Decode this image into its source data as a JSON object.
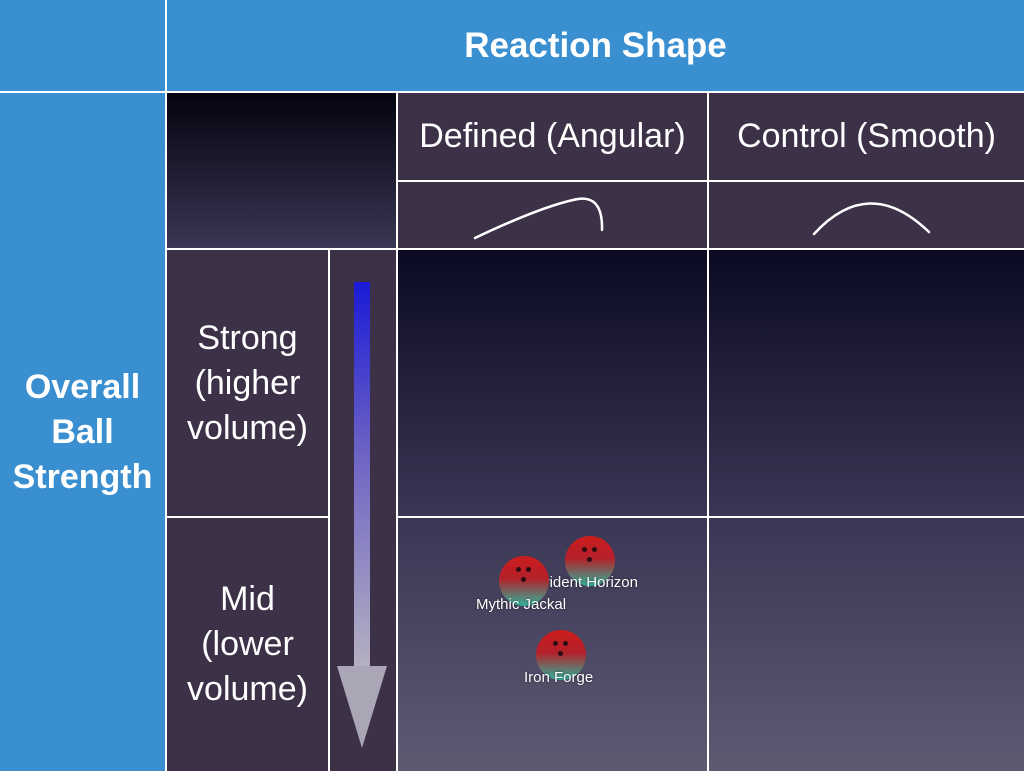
{
  "header": {
    "corner": "",
    "title": "Reaction Shape"
  },
  "side": {
    "title": "Overall\nBall\nStrength"
  },
  "columns": [
    {
      "label": "Defined (Angular)",
      "curve_icon": "angular-curve-icon"
    },
    {
      "label": "Control (Smooth)",
      "curve_icon": "smooth-curve-icon"
    }
  ],
  "rows": [
    {
      "label": "Strong\n(higher\nvolume)"
    },
    {
      "label": "Mid\n(lower\nvolume)"
    }
  ],
  "strength_arrow": {
    "direction": "down",
    "icon": "strength-arrow-icon"
  },
  "balls": [
    {
      "name": "Trident Horizon",
      "row": "Mid (lower volume)",
      "column": "Defined (Angular)"
    },
    {
      "name": "Mythic Jackal",
      "row": "Mid (lower volume)",
      "column": "Defined (Angular)"
    },
    {
      "name": "Iron Forge",
      "row": "Mid (lower volume)",
      "column": "Defined (Angular)"
    }
  ],
  "colors": {
    "header_blue": "#3a8fd1",
    "label_purple": "#3d3148",
    "ball_top": "#cc1d1d",
    "ball_bottom": "#2fb39b",
    "arrow_top": "#1a1ad6",
    "arrow_bottom": "#b5b0c2"
  }
}
